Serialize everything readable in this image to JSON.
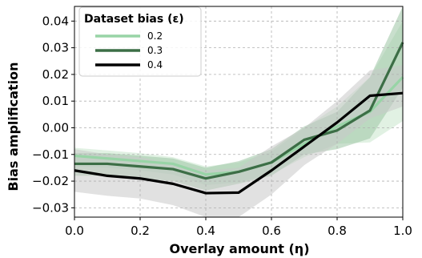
{
  "chart_data": {
    "type": "line",
    "xlabel": "Overlay amount (η)",
    "ylabel": "Bias amplification",
    "xlim": [
      0.0,
      1.0
    ],
    "ylim": [
      -0.0335,
      0.0455
    ],
    "x_ticks": [
      "0.0",
      "0.2",
      "0.4",
      "0.6",
      "0.8",
      "1.0"
    ],
    "y_ticks": [
      "−0.03",
      "−0.02",
      "−0.01",
      "0.00",
      "0.01",
      "0.02",
      "0.03",
      "0.04"
    ],
    "grid": true,
    "legend": {
      "title": "Dataset bias (ε)",
      "placement": "top-left"
    },
    "x": [
      0.0,
      0.1,
      0.2,
      0.3,
      0.4,
      0.5,
      0.6,
      0.7,
      0.8,
      0.9,
      1.0
    ],
    "series": [
      {
        "name": "0.2",
        "color": "#98d4a6",
        "band_color": "#c8e6cc",
        "values": [
          -0.0105,
          -0.0115,
          -0.0125,
          -0.0135,
          -0.0175,
          -0.0165,
          -0.013,
          -0.006,
          0.0005,
          0.006,
          0.019
        ],
        "lower": [
          -0.0145,
          -0.015,
          -0.016,
          -0.0175,
          -0.0215,
          -0.0205,
          -0.0175,
          -0.011,
          -0.006,
          -0.0055,
          0.0025
        ],
        "upper": [
          -0.0075,
          -0.0085,
          -0.0095,
          -0.011,
          -0.0145,
          -0.013,
          -0.009,
          0.0,
          0.008,
          0.019,
          0.04
        ]
      },
      {
        "name": "0.3",
        "color": "#3c6e46",
        "band_color": "#9cc4a4",
        "values": [
          -0.0135,
          -0.0135,
          -0.0145,
          -0.0155,
          -0.019,
          -0.0165,
          -0.013,
          -0.0045,
          -0.001,
          0.0065,
          0.032
        ],
        "lower": [
          -0.018,
          -0.018,
          -0.019,
          -0.02,
          -0.0235,
          -0.021,
          -0.018,
          -0.01,
          -0.008,
          -0.004,
          0.015
        ],
        "upper": [
          -0.0095,
          -0.0095,
          -0.0105,
          -0.0115,
          -0.015,
          -0.0125,
          -0.008,
          0.0005,
          0.006,
          0.019,
          0.0455
        ]
      },
      {
        "name": "0.4",
        "color": "#000000",
        "band_color": "#c8c8c8",
        "values": [
          -0.016,
          -0.018,
          -0.019,
          -0.021,
          -0.0245,
          -0.0243,
          -0.016,
          -0.007,
          0.002,
          0.012,
          0.013
        ],
        "lower": [
          -0.024,
          -0.0255,
          -0.0265,
          -0.029,
          -0.0335,
          -0.0335,
          -0.025,
          -0.014,
          -0.006,
          0.0035,
          0.008
        ],
        "upper": [
          -0.008,
          -0.01,
          -0.011,
          -0.0135,
          -0.016,
          -0.015,
          -0.007,
          0.0,
          0.01,
          0.0215,
          0.0235
        ]
      }
    ]
  }
}
